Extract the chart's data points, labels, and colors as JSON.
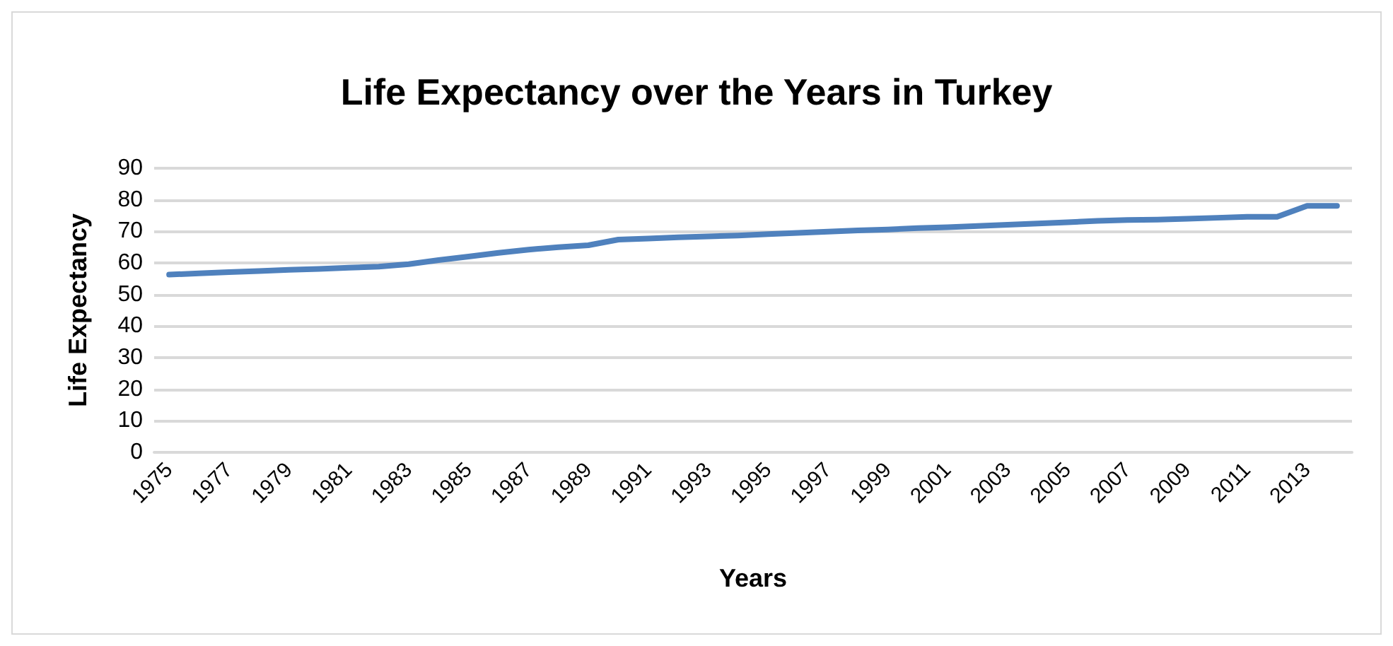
{
  "chart_data": {
    "type": "line",
    "title": "Life Expectancy over the Years in Turkey",
    "xlabel": "Years",
    "ylabel": "Life Expectancy",
    "categories": [
      "1975",
      null,
      "1977",
      null,
      "1979",
      null,
      "1981",
      null,
      "1983",
      null,
      "1985",
      null,
      "1987",
      null,
      "1989",
      null,
      "1991",
      null,
      "1993",
      null,
      "1995",
      null,
      "1997",
      null,
      "1999",
      null,
      "2001",
      null,
      "2003",
      null,
      "2005",
      null,
      "2007",
      null,
      "2009",
      null,
      "2011",
      null,
      "2013",
      null
    ],
    "series": [
      {
        "color": "#4f81bd",
        "values": [
          56.3,
          56.7,
          57.1,
          57.4,
          57.8,
          58.1,
          58.5,
          58.8,
          59.6,
          60.9,
          62.0,
          63.2,
          64.2,
          65.0,
          65.6,
          67.4,
          67.7,
          68.1,
          68.4,
          68.7,
          69.1,
          69.5,
          69.9,
          70.3,
          70.6,
          71.0,
          71.3,
          71.7,
          72.1,
          72.5,
          72.9,
          73.3,
          73.6,
          73.7,
          74.0,
          74.3,
          74.6,
          74.6,
          78.1,
          78.1
        ]
      }
    ],
    "ylim": [
      0,
      90
    ],
    "yticks": [
      0,
      10,
      20,
      30,
      40,
      50,
      60,
      70,
      80,
      90
    ],
    "grid": "y",
    "marker": "none",
    "line_style": "solid"
  }
}
